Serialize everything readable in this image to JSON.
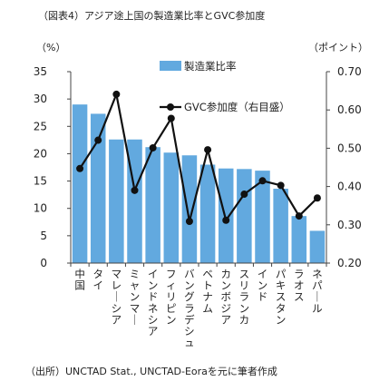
{
  "title": "（図表4）アジア途上国の製造業比率とGVC参加度",
  "source": "（出所）UNCTAD Stat., UNCTAD-Eoraを元に筆者作成",
  "chart_data": {
    "type": "bar",
    "categories": [
      "中国",
      "タイ",
      "マレーシア",
      "ミャンマー",
      "インドネシア",
      "フィリピン",
      "バングラデシュ",
      "ベトナム",
      "カンボジア",
      "スリランカ",
      "インド",
      "パキスタン",
      "ラオス",
      "ネパール"
    ],
    "series": [
      {
        "name": "製造業比率",
        "type": "bar",
        "axis": "left",
        "color": "#62a9df",
        "values": [
          29.0,
          27.3,
          22.6,
          22.6,
          21.2,
          20.2,
          19.7,
          18.0,
          17.3,
          17.2,
          16.9,
          13.6,
          8.6,
          5.9
        ]
      },
      {
        "name": "GVC参加度（右目盛）",
        "type": "line",
        "axis": "right",
        "color": "#111111",
        "values": [
          0.447,
          0.521,
          0.641,
          0.39,
          0.501,
          0.578,
          0.309,
          0.496,
          0.312,
          0.38,
          0.415,
          0.403,
          0.323,
          0.37
        ]
      }
    ],
    "y_left": {
      "unit": "（%）",
      "ylim": [
        0,
        35
      ],
      "ticks": [
        "0",
        "5",
        "10",
        "15",
        "20",
        "25",
        "30",
        "35"
      ]
    },
    "y_right": {
      "unit": "（ポイント）",
      "ylim": [
        0.2,
        0.7
      ],
      "ticks": [
        "0.20",
        "0.30",
        "0.40",
        "0.50",
        "0.60",
        "0.70"
      ]
    },
    "grid": false,
    "legend": "top-right"
  }
}
